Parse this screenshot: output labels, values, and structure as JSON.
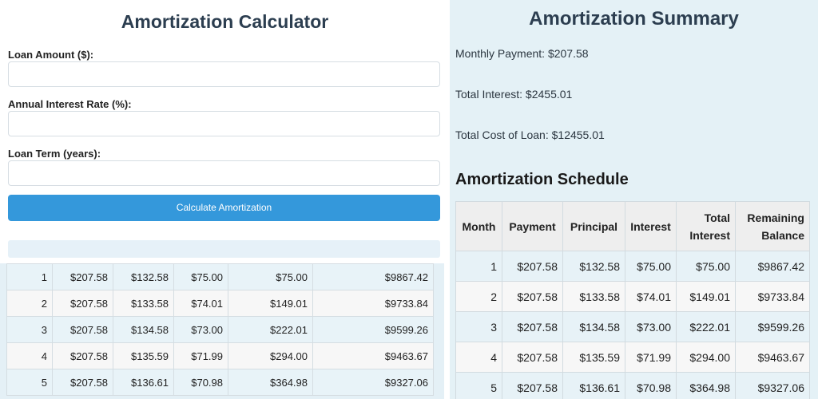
{
  "calculator": {
    "title": "Amortization Calculator",
    "loan_amount_label": "Loan Amount ($):",
    "loan_amount_value": "",
    "interest_rate_label": "Annual Interest Rate (%):",
    "interest_rate_value": "",
    "loan_term_label": "Loan Term (years):",
    "loan_term_value": "",
    "calculate_button": "Calculate Amortization"
  },
  "left_schedule_rows": [
    [
      "1",
      "$207.58",
      "$132.58",
      "$75.00",
      "$75.00",
      "$9867.42"
    ],
    [
      "2",
      "$207.58",
      "$133.58",
      "$74.01",
      "$149.01",
      "$9733.84"
    ],
    [
      "3",
      "$207.58",
      "$134.58",
      "$73.00",
      "$222.01",
      "$9599.26"
    ],
    [
      "4",
      "$207.58",
      "$135.59",
      "$71.99",
      "$294.00",
      "$9463.67"
    ],
    [
      "5",
      "$207.58",
      "$136.61",
      "$70.98",
      "$364.98",
      "$9327.06"
    ]
  ],
  "summary": {
    "title": "Amortization Summary",
    "monthly_payment": "Monthly Payment: $207.58",
    "total_interest": "Total Interest: $2455.01",
    "total_cost": "Total Cost of Loan: $12455.01"
  },
  "schedule": {
    "title": "Amortization Schedule",
    "headers": [
      "Month",
      "Payment",
      "Principal",
      "Interest",
      "Total Interest",
      "Remaining Balance"
    ],
    "rows": [
      [
        "1",
        "$207.58",
        "$132.58",
        "$75.00",
        "$75.00",
        "$9867.42"
      ],
      [
        "2",
        "$207.58",
        "$133.58",
        "$74.01",
        "$149.01",
        "$9733.84"
      ],
      [
        "3",
        "$207.58",
        "$134.58",
        "$73.00",
        "$222.01",
        "$9599.26"
      ],
      [
        "4",
        "$207.58",
        "$135.59",
        "$71.99",
        "$294.00",
        "$9463.67"
      ],
      [
        "5",
        "$207.58",
        "$136.61",
        "$70.98",
        "$364.98",
        "$9327.06"
      ]
    ]
  },
  "colors": {
    "accent": "#3498db",
    "title": "#2c3e50",
    "summary_bg": "#e4f1f6"
  }
}
